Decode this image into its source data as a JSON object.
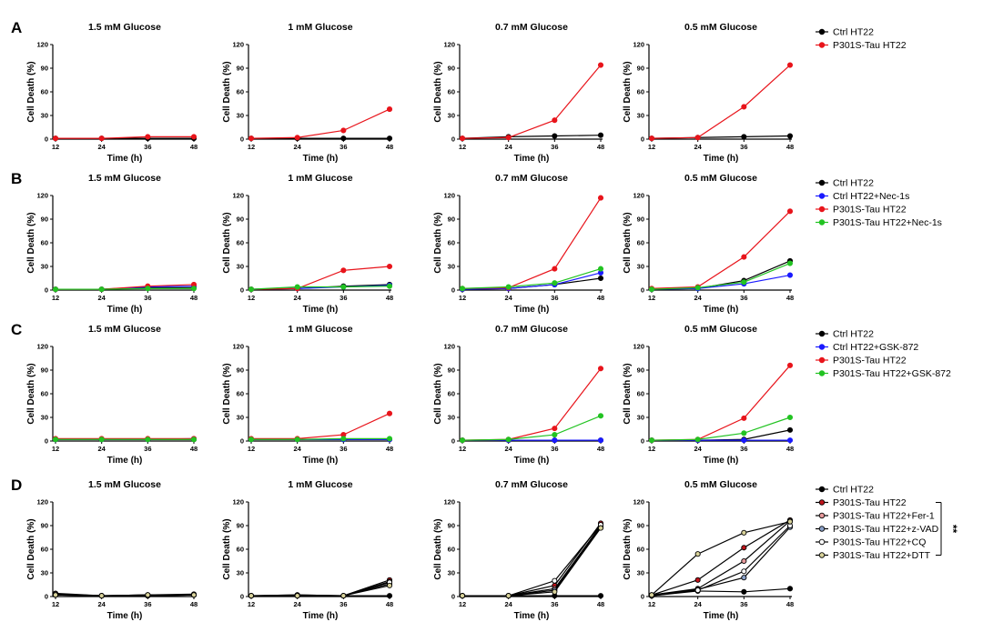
{
  "figure": {
    "panel_letters": [
      "A",
      "B",
      "C",
      "D"
    ],
    "significance": "**"
  },
  "chart_data": [
    {
      "panel": "A",
      "type": "line",
      "x": [
        12,
        24,
        36,
        48
      ],
      "xlabel": "Time (h)",
      "ylabel": "Cell Death (%)",
      "ylim": [
        0,
        120
      ],
      "yticks": [
        0,
        30,
        60,
        90,
        120
      ],
      "legend": "right",
      "subplots": [
        {
          "title": "1.5 mM  Glucose",
          "series": [
            {
              "name": "Ctrl HT22",
              "color": "#000000",
              "values": [
                1,
                1,
                1,
                1
              ]
            },
            {
              "name": "P301S-Tau HT22",
              "color": "#e8141b",
              "values": [
                1,
                1,
                3,
                3
              ]
            }
          ]
        },
        {
          "title": "1 mM  Glucose",
          "series": [
            {
              "name": "Ctrl HT22",
              "color": "#000000",
              "values": [
                1,
                1,
                1,
                1
              ]
            },
            {
              "name": "P301S-Tau HT22",
              "color": "#e8141b",
              "values": [
                1,
                2,
                11,
                38
              ]
            }
          ]
        },
        {
          "title": "0.7 mM  Glucose",
          "series": [
            {
              "name": "Ctrl HT22",
              "color": "#000000",
              "values": [
                1,
                3,
                4,
                5
              ]
            },
            {
              "name": "P301S-Tau HT22",
              "color": "#e8141b",
              "values": [
                1,
                2,
                24,
                94
              ]
            }
          ]
        },
        {
          "title": "0.5 mM  Glucose",
          "series": [
            {
              "name": "Ctrl HT22",
              "color": "#000000",
              "values": [
                1,
                2,
                3,
                4
              ]
            },
            {
              "name": "P301S-Tau HT22",
              "color": "#e8141b",
              "values": [
                1,
                2,
                41,
                94
              ]
            }
          ]
        }
      ]
    },
    {
      "panel": "B",
      "type": "line",
      "x": [
        12,
        24,
        36,
        48
      ],
      "xlabel": "Time (h)",
      "ylabel": "Cell Death (%)",
      "ylim": [
        0,
        120
      ],
      "yticks": [
        0,
        30,
        60,
        90,
        120
      ],
      "legend": "right",
      "subplots": [
        {
          "title": "1.5 mM  Glucose",
          "series": [
            {
              "name": "Ctrl HT22",
              "color": "#000000",
              "values": [
                1,
                1,
                3,
                3
              ]
            },
            {
              "name": "Ctrl HT22+Nec-1s",
              "color": "#1a1aff",
              "values": [
                1,
                1,
                4,
                5
              ]
            },
            {
              "name": "P301S-Tau HT22",
              "color": "#e8141b",
              "values": [
                1,
                1,
                5,
                7
              ]
            },
            {
              "name": "P301S-Tau HT22+Nec-1s",
              "color": "#22c322",
              "values": [
                1,
                1,
                2,
                2
              ]
            }
          ]
        },
        {
          "title": "1 mM  Glucose",
          "series": [
            {
              "name": "Ctrl HT22",
              "color": "#000000",
              "values": [
                1,
                2,
                5,
                7
              ]
            },
            {
              "name": "Ctrl HT22+Nec-1s",
              "color": "#1a1aff",
              "values": [
                1,
                2,
                4,
                6
              ]
            },
            {
              "name": "P301S-Tau HT22",
              "color": "#e8141b",
              "values": [
                1,
                2,
                25,
                30
              ]
            },
            {
              "name": "P301S-Tau HT22+Nec-1s",
              "color": "#22c322",
              "values": [
                1,
                4,
                4,
                5
              ]
            }
          ]
        },
        {
          "title": "0.7 mM  Glucose",
          "series": [
            {
              "name": "Ctrl HT22",
              "color": "#000000",
              "values": [
                1,
                2,
                7,
                15
              ]
            },
            {
              "name": "Ctrl HT22+Nec-1s",
              "color": "#1a1aff",
              "values": [
                1,
                2,
                7,
                22
              ]
            },
            {
              "name": "P301S-Tau HT22",
              "color": "#e8141b",
              "values": [
                2,
                3,
                27,
                117
              ]
            },
            {
              "name": "P301S-Tau HT22+Nec-1s",
              "color": "#22c322",
              "values": [
                2,
                4,
                9,
                27
              ]
            }
          ]
        },
        {
          "title": "0.5 mM  Glucose",
          "series": [
            {
              "name": "Ctrl HT22",
              "color": "#000000",
              "values": [
                1,
                2,
                12,
                37
              ]
            },
            {
              "name": "Ctrl HT22+Nec-1s",
              "color": "#1a1aff",
              "values": [
                1,
                2,
                8,
                19
              ]
            },
            {
              "name": "P301S-Tau HT22",
              "color": "#e8141b",
              "values": [
                2,
                4,
                42,
                100
              ]
            },
            {
              "name": "P301S-Tau HT22+Nec-1s",
              "color": "#22c322",
              "values": [
                1,
                3,
                10,
                34
              ]
            }
          ]
        }
      ]
    },
    {
      "panel": "C",
      "type": "line",
      "x": [
        12,
        24,
        36,
        48
      ],
      "xlabel": "Time (h)",
      "ylabel": "Cell Death (%)",
      "ylim": [
        0,
        120
      ],
      "yticks": [
        0,
        30,
        60,
        90,
        120
      ],
      "legend": "right",
      "subplots": [
        {
          "title": "1.5 mM  Glucose",
          "series": [
            {
              "name": "Ctrl HT22",
              "color": "#000000",
              "values": [
                2,
                2,
                2,
                2
              ]
            },
            {
              "name": "Ctrl HT22+GSK-872",
              "color": "#1a1aff",
              "values": [
                2,
                2,
                2,
                3
              ]
            },
            {
              "name": "P301S-Tau HT22",
              "color": "#e8141b",
              "values": [
                3,
                3,
                3,
                3
              ]
            },
            {
              "name": "P301S-Tau HT22+GSK-872",
              "color": "#22c322",
              "values": [
                2,
                2,
                2,
                2
              ]
            }
          ]
        },
        {
          "title": "1 mM  Glucose",
          "series": [
            {
              "name": "Ctrl HT22",
              "color": "#000000",
              "values": [
                2,
                2,
                2,
                2
              ]
            },
            {
              "name": "Ctrl HT22+GSK-872",
              "color": "#1a1aff",
              "values": [
                2,
                2,
                2,
                2
              ]
            },
            {
              "name": "P301S-Tau HT22",
              "color": "#e8141b",
              "values": [
                3,
                3,
                8,
                35
              ]
            },
            {
              "name": "P301S-Tau HT22+GSK-872",
              "color": "#22c322",
              "values": [
                2,
                2,
                3,
                3
              ]
            }
          ]
        },
        {
          "title": "0.7 mM  Glucose",
          "series": [
            {
              "name": "Ctrl HT22",
              "color": "#000000",
              "values": [
                1,
                1,
                1,
                1
              ]
            },
            {
              "name": "Ctrl HT22+GSK-872",
              "color": "#1a1aff",
              "values": [
                1,
                1,
                1,
                1
              ]
            },
            {
              "name": "P301S-Tau HT22",
              "color": "#e8141b",
              "values": [
                1,
                2,
                16,
                92
              ]
            },
            {
              "name": "P301S-Tau HT22+GSK-872",
              "color": "#22c322",
              "values": [
                1,
                2,
                8,
                32
              ]
            }
          ]
        },
        {
          "title": "0.5 mM  Glucose",
          "series": [
            {
              "name": "Ctrl HT22",
              "color": "#000000",
              "values": [
                1,
                1,
                2,
                14
              ]
            },
            {
              "name": "Ctrl HT22+GSK-872",
              "color": "#1a1aff",
              "values": [
                1,
                1,
                1,
                1
              ]
            },
            {
              "name": "P301S-Tau HT22",
              "color": "#e8141b",
              "values": [
                1,
                2,
                29,
                96
              ]
            },
            {
              "name": "P301S-Tau HT22+GSK-872",
              "color": "#22c322",
              "values": [
                1,
                2,
                10,
                30
              ]
            }
          ]
        }
      ]
    },
    {
      "panel": "D",
      "type": "line",
      "x": [
        12,
        24,
        36,
        48
      ],
      "xlabel": "Time (h)",
      "ylabel": "Cell Death (%)",
      "ylim": [
        0,
        120
      ],
      "yticks": [
        0,
        30,
        60,
        90,
        120
      ],
      "legend": "right",
      "subplots": [
        {
          "title": "1.5 mM  Glucose",
          "series": [
            {
              "name": "Ctrl HT22",
              "color": "#000000",
              "fill": "#000000",
              "values": [
                2,
                1,
                1,
                2
              ]
            },
            {
              "name": "P301S-Tau HT22",
              "color": "#000000",
              "fill": "#c0141b",
              "values": [
                3,
                1,
                2,
                2
              ]
            },
            {
              "name": "P301S-Tau HT22+Fer-1",
              "color": "#000000",
              "fill": "#e79a9c",
              "values": [
                4,
                1,
                2,
                3
              ]
            },
            {
              "name": "P301S-Tau HT22+z-VAD",
              "color": "#000000",
              "fill": "#8aa0c8",
              "values": [
                2,
                1,
                1,
                2
              ]
            },
            {
              "name": "P301S-Tau HT22+CQ",
              "color": "#000000",
              "fill": "#ffffff",
              "values": [
                3,
                1,
                1,
                2
              ]
            },
            {
              "name": "P301S-Tau HT22+DTT",
              "color": "#000000",
              "fill": "#d8d29a",
              "values": [
                2,
                1,
                2,
                2
              ]
            }
          ]
        },
        {
          "title": "1 mM  Glucose",
          "series": [
            {
              "name": "Ctrl HT22",
              "color": "#000000",
              "fill": "#000000",
              "values": [
                1,
                1,
                1,
                1
              ]
            },
            {
              "name": "P301S-Tau HT22",
              "color": "#000000",
              "fill": "#c0141b",
              "values": [
                1,
                2,
                1,
                21
              ]
            },
            {
              "name": "P301S-Tau HT22+Fer-1",
              "color": "#000000",
              "fill": "#e79a9c",
              "values": [
                1,
                2,
                1,
                19
              ]
            },
            {
              "name": "P301S-Tau HT22+z-VAD",
              "color": "#000000",
              "fill": "#8aa0c8",
              "values": [
                1,
                1,
                1,
                16
              ]
            },
            {
              "name": "P301S-Tau HT22+CQ",
              "color": "#000000",
              "fill": "#ffffff",
              "values": [
                1,
                1,
                1,
                18
              ]
            },
            {
              "name": "P301S-Tau HT22+DTT",
              "color": "#000000",
              "fill": "#d8d29a",
              "values": [
                1,
                1,
                1,
                14
              ]
            }
          ]
        },
        {
          "title": "0.7 mM  Glucose",
          "series": [
            {
              "name": "Ctrl HT22",
              "color": "#000000",
              "fill": "#000000",
              "values": [
                1,
                1,
                1,
                1
              ]
            },
            {
              "name": "P301S-Tau HT22",
              "color": "#000000",
              "fill": "#c0141b",
              "values": [
                1,
                1,
                14,
                93
              ]
            },
            {
              "name": "P301S-Tau HT22+Fer-1",
              "color": "#000000",
              "fill": "#e79a9c",
              "values": [
                1,
                1,
                10,
                90
              ]
            },
            {
              "name": "P301S-Tau HT22+z-VAD",
              "color": "#000000",
              "fill": "#8aa0c8",
              "values": [
                1,
                1,
                8,
                88
              ]
            },
            {
              "name": "P301S-Tau HT22+CQ",
              "color": "#000000",
              "fill": "#ffffff",
              "values": [
                1,
                1,
                20,
                91
              ]
            },
            {
              "name": "P301S-Tau HT22+DTT",
              "color": "#000000",
              "fill": "#d8d29a",
              "values": [
                1,
                1,
                6,
                87
              ]
            }
          ]
        },
        {
          "title": "0.5 mM  Glucose",
          "series": [
            {
              "name": "Ctrl HT22",
              "color": "#000000",
              "fill": "#000000",
              "values": [
                1,
                7,
                6,
                10
              ]
            },
            {
              "name": "P301S-Tau HT22",
              "color": "#000000",
              "fill": "#c0141b",
              "values": [
                2,
                21,
                62,
                97
              ]
            },
            {
              "name": "P301S-Tau HT22+Fer-1",
              "color": "#000000",
              "fill": "#e79a9c",
              "values": [
                2,
                10,
                45,
                96
              ]
            },
            {
              "name": "P301S-Tau HT22+z-VAD",
              "color": "#000000",
              "fill": "#8aa0c8",
              "values": [
                1,
                9,
                24,
                88
              ]
            },
            {
              "name": "P301S-Tau HT22+CQ",
              "color": "#000000",
              "fill": "#ffffff",
              "values": [
                1,
                8,
                32,
                90
              ]
            },
            {
              "name": "P301S-Tau HT22+DTT",
              "color": "#000000",
              "fill": "#d8d29a",
              "values": [
                2,
                54,
                81,
                95
              ]
            }
          ]
        }
      ]
    }
  ]
}
